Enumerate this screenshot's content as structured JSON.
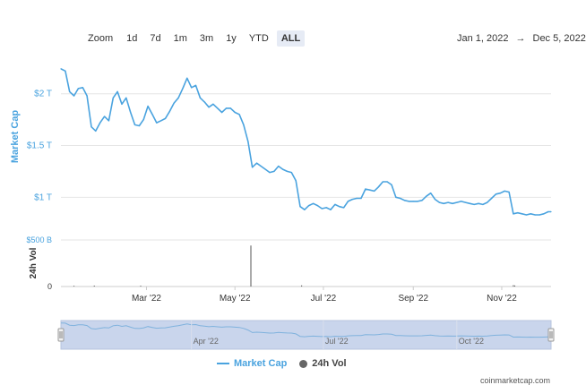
{
  "toolbar": {
    "zoom_label": "Zoom",
    "buttons": [
      "1d",
      "7d",
      "1m",
      "3m",
      "1y",
      "YTD",
      "ALL"
    ],
    "active": "ALL"
  },
  "date_range": {
    "start": "Jan 1, 2022",
    "arrow": "→",
    "end": "Dec 5, 2022"
  },
  "legend": [
    {
      "label": "Market Cap",
      "color": "#4aa3df",
      "marker": "line"
    },
    {
      "label": "24h Vol",
      "color": "#666666",
      "marker": "dot"
    }
  ],
  "watermark": "coinmarketcap.com",
  "colors": {
    "series": "#4aa3df",
    "volume": "#555555",
    "navigator_fill": "#c9d5ec"
  },
  "chart_data": {
    "type": "line",
    "main": {
      "ylabel": "Market Cap",
      "y_ticks": [
        {
          "value": 1000000000000,
          "label": "$1 T"
        },
        {
          "value": 1500000000000,
          "label": "$1.5 T"
        },
        {
          "value": 2000000000000,
          "label": "$2 T"
        }
      ],
      "ylim": [
        700000000000,
        2300000000000
      ],
      "series": [
        {
          "name": "Market Cap",
          "x": [
            "2022-01-01",
            "2022-01-04",
            "2022-01-07",
            "2022-01-10",
            "2022-01-13",
            "2022-01-16",
            "2022-01-19",
            "2022-01-22",
            "2022-01-25",
            "2022-01-28",
            "2022-01-31",
            "2022-02-03",
            "2022-02-06",
            "2022-02-09",
            "2022-02-12",
            "2022-02-15",
            "2022-02-18",
            "2022-02-21",
            "2022-02-24",
            "2022-02-27",
            "2022-03-02",
            "2022-03-05",
            "2022-03-08",
            "2022-03-11",
            "2022-03-14",
            "2022-03-17",
            "2022-03-20",
            "2022-03-23",
            "2022-03-26",
            "2022-03-29",
            "2022-04-01",
            "2022-04-04",
            "2022-04-07",
            "2022-04-10",
            "2022-04-13",
            "2022-04-16",
            "2022-04-19",
            "2022-04-22",
            "2022-04-25",
            "2022-04-28",
            "2022-05-01",
            "2022-05-04",
            "2022-05-07",
            "2022-05-10",
            "2022-05-13",
            "2022-05-16",
            "2022-05-19",
            "2022-05-22",
            "2022-05-25",
            "2022-05-28",
            "2022-05-31",
            "2022-06-03",
            "2022-06-06",
            "2022-06-09",
            "2022-06-12",
            "2022-06-15",
            "2022-06-18",
            "2022-06-21",
            "2022-06-24",
            "2022-06-27",
            "2022-06-30",
            "2022-07-03",
            "2022-07-06",
            "2022-07-09",
            "2022-07-12",
            "2022-07-15",
            "2022-07-18",
            "2022-07-21",
            "2022-07-24",
            "2022-07-27",
            "2022-07-30",
            "2022-08-02",
            "2022-08-05",
            "2022-08-08",
            "2022-08-11",
            "2022-08-14",
            "2022-08-17",
            "2022-08-20",
            "2022-08-23",
            "2022-08-26",
            "2022-08-29",
            "2022-09-01",
            "2022-09-04",
            "2022-09-07",
            "2022-09-10",
            "2022-09-13",
            "2022-09-16",
            "2022-09-19",
            "2022-09-22",
            "2022-09-25",
            "2022-09-28",
            "2022-10-01",
            "2022-10-04",
            "2022-10-07",
            "2022-10-10",
            "2022-10-13",
            "2022-10-16",
            "2022-10-19",
            "2022-10-22",
            "2022-10-25",
            "2022-10-28",
            "2022-10-31",
            "2022-11-03",
            "2022-11-06",
            "2022-11-09",
            "2022-11-12",
            "2022-11-15",
            "2022-11-18",
            "2022-11-21",
            "2022-11-24",
            "2022-11-27",
            "2022-11-30",
            "2022-12-03",
            "2022-12-05"
          ],
          "values": [
            2240000000000,
            2220000000000,
            2020000000000,
            1980000000000,
            2050000000000,
            2060000000000,
            1980000000000,
            1680000000000,
            1640000000000,
            1720000000000,
            1780000000000,
            1740000000000,
            1960000000000,
            2020000000000,
            1900000000000,
            1960000000000,
            1820000000000,
            1700000000000,
            1690000000000,
            1750000000000,
            1880000000000,
            1800000000000,
            1720000000000,
            1740000000000,
            1760000000000,
            1830000000000,
            1910000000000,
            1960000000000,
            2050000000000,
            2150000000000,
            2060000000000,
            2080000000000,
            1960000000000,
            1920000000000,
            1870000000000,
            1900000000000,
            1860000000000,
            1820000000000,
            1860000000000,
            1860000000000,
            1820000000000,
            1800000000000,
            1700000000000,
            1540000000000,
            1290000000000,
            1330000000000,
            1300000000000,
            1270000000000,
            1240000000000,
            1250000000000,
            1300000000000,
            1270000000000,
            1250000000000,
            1240000000000,
            1160000000000,
            910000000000,
            880000000000,
            920000000000,
            940000000000,
            920000000000,
            890000000000,
            900000000000,
            880000000000,
            930000000000,
            910000000000,
            900000000000,
            960000000000,
            980000000000,
            990000000000,
            990000000000,
            1080000000000,
            1070000000000,
            1060000000000,
            1100000000000,
            1150000000000,
            1150000000000,
            1120000000000,
            1000000000000,
            990000000000,
            970000000000,
            960000000000,
            960000000000,
            960000000000,
            970000000000,
            1010000000000,
            1040000000000,
            980000000000,
            950000000000,
            940000000000,
            950000000000,
            940000000000,
            950000000000,
            960000000000,
            950000000000,
            940000000000,
            930000000000,
            940000000000,
            930000000000,
            950000000000,
            990000000000,
            1030000000000,
            1040000000000,
            1060000000000,
            1050000000000,
            840000000000,
            850000000000,
            840000000000,
            830000000000,
            840000000000,
            830000000000,
            830000000000,
            840000000000,
            860000000000,
            860000000000
          ]
        }
      ]
    },
    "volume": {
      "ylabel": "24h Vol",
      "y_ticks": [
        {
          "value": 0,
          "label": "0"
        },
        {
          "value": 500000000000,
          "label": "$500 B"
        }
      ],
      "ylim": [
        0,
        500000000000
      ],
      "spikes": [
        {
          "x": "2022-01-10",
          "value": 8000000000
        },
        {
          "x": "2022-01-24",
          "value": 10000000000
        },
        {
          "x": "2022-02-25",
          "value": 9000000000
        },
        {
          "x": "2022-05-12",
          "value": 440000000000
        },
        {
          "x": "2022-06-16",
          "value": 12000000000
        },
        {
          "x": "2022-11-09",
          "value": 14000000000
        },
        {
          "x": "2022-11-10",
          "value": 11000000000
        }
      ]
    },
    "x_ticks": [
      {
        "x": "2022-03-01",
        "label": "Mar '22"
      },
      {
        "x": "2022-05-01",
        "label": "May '22"
      },
      {
        "x": "2022-07-01",
        "label": "Jul '22"
      },
      {
        "x": "2022-09-01",
        "label": "Sep '22"
      },
      {
        "x": "2022-11-01",
        "label": "Nov '22"
      }
    ],
    "navigator_ticks": [
      {
        "x": "2022-04-01",
        "label": "Apr '22"
      },
      {
        "x": "2022-07-01",
        "label": "Jul '22"
      },
      {
        "x": "2022-10-01",
        "label": "Oct '22"
      }
    ],
    "xlim": [
      "2022-01-01",
      "2022-12-05"
    ],
    "grid": true
  }
}
